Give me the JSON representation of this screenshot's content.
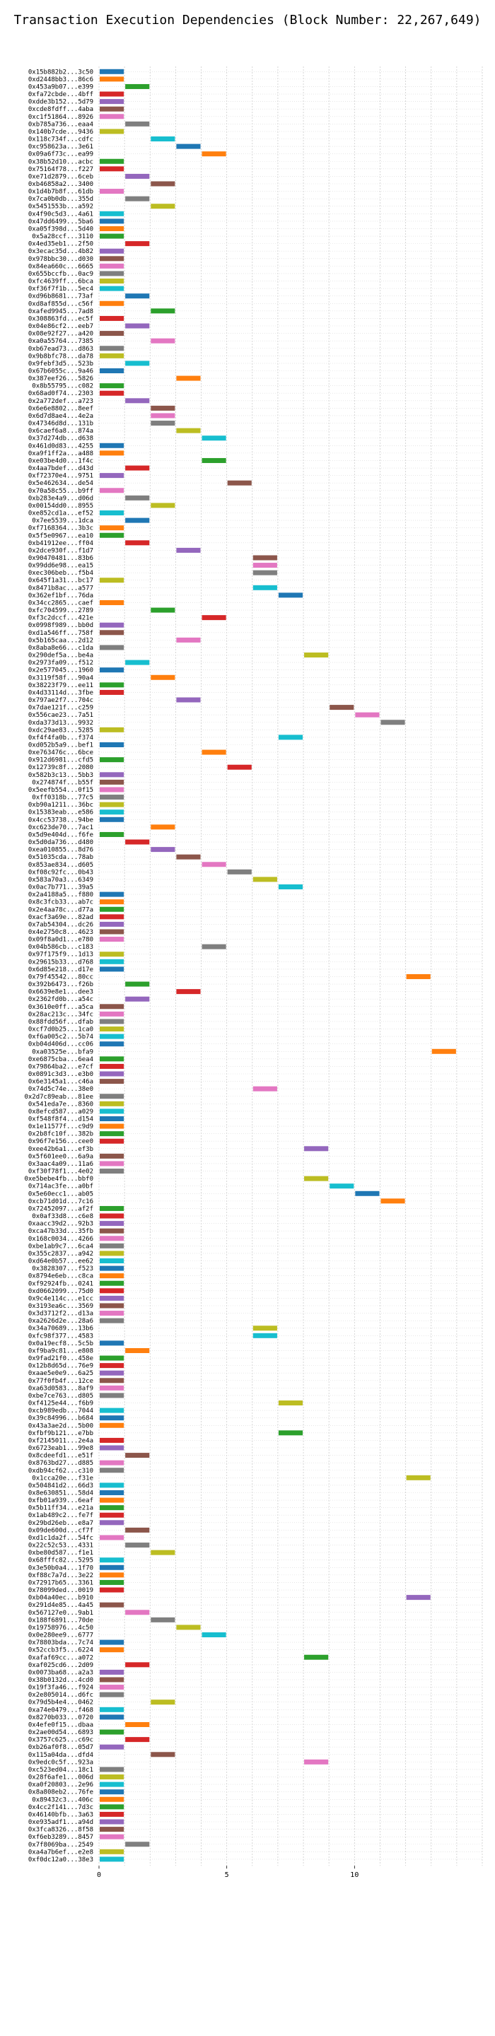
{
  "chart_data": {
    "type": "gantt",
    "title": "Transaction Execution Dependencies (Block Number: 22,267,649)",
    "xlabel": "",
    "ylabel": "",
    "xlim": [
      0,
      15
    ],
    "xticks": [
      0,
      5,
      10
    ],
    "grid": true,
    "palette": [
      "#1f77b4",
      "#ff7f0e",
      "#2ca02c",
      "#d62728",
      "#9467bd",
      "#8c564b",
      "#e377c2",
      "#7f7f7f",
      "#bcbd22",
      "#17becf"
    ],
    "transactions": [
      {
        "tx": "0x15b882b2...3c50",
        "start": 0
      },
      {
        "tx": "0xd2448bb3...86c6",
        "start": 0
      },
      {
        "tx": "0x453a9b07...e399",
        "start": 1
      },
      {
        "tx": "0xfa72cbde...4bff",
        "start": 0
      },
      {
        "tx": "0xdde3b152...5d79",
        "start": 0
      },
      {
        "tx": "0xcde8fdff...4aba",
        "start": 0
      },
      {
        "tx": "0xc1f51864...8926",
        "start": 0
      },
      {
        "tx": "0xb785a736...eaa4",
        "start": 1
      },
      {
        "tx": "0x140b7cde...9436",
        "start": 0
      },
      {
        "tx": "0x118c734f...cdfc",
        "start": 2
      },
      {
        "tx": "0xc958623a...3e61",
        "start": 3
      },
      {
        "tx": "0x09a6f73c...ea99",
        "start": 4
      },
      {
        "tx": "0x38b52d10...acbc",
        "start": 0
      },
      {
        "tx": "0x75164f78...f227",
        "start": 0
      },
      {
        "tx": "0xe71d2879...6ceb",
        "start": 1
      },
      {
        "tx": "0xb46858a2...3400",
        "start": 2
      },
      {
        "tx": "0x1d4b7b8f...61db",
        "start": 0
      },
      {
        "tx": "0x7ca0b0db...355d",
        "start": 1
      },
      {
        "tx": "0x5451553b...a592",
        "start": 2
      },
      {
        "tx": "0x4f90c5d3...4a61",
        "start": 0
      },
      {
        "tx": "0x47dd6499...5ba6",
        "start": 0
      },
      {
        "tx": "0xa05f398d...5d40",
        "start": 0
      },
      {
        "tx": "0x5a28ccf...3110",
        "start": 0
      },
      {
        "tx": "0x4ed35eb1...2f50",
        "start": 1
      },
      {
        "tx": "0x3ecac35d...4b82",
        "start": 0
      },
      {
        "tx": "0x978bbc30...d030",
        "start": 0
      },
      {
        "tx": "0x84ea660c...6665",
        "start": 0
      },
      {
        "tx": "0x655bccfb...0ac9",
        "start": 0
      },
      {
        "tx": "0xfc4639ff...6bca",
        "start": 0
      },
      {
        "tx": "0xf36f7f1b...5ec4",
        "start": 0
      },
      {
        "tx": "0xd96b8681...73af",
        "start": 1
      },
      {
        "tx": "0xd8af855d...c56f",
        "start": 0
      },
      {
        "tx": "0xafed9945...7ad8",
        "start": 2
      },
      {
        "tx": "0x308863fd...ec5f",
        "start": 0
      },
      {
        "tx": "0x04e86cf2...eeb7",
        "start": 1
      },
      {
        "tx": "0x08e92f27...a420",
        "start": 0
      },
      {
        "tx": "0xa0a55764...7385",
        "start": 2
      },
      {
        "tx": "0xb67ead73...d863",
        "start": 0
      },
      {
        "tx": "0x9b8bfc78...da78",
        "start": 0
      },
      {
        "tx": "0x9febf3d5...523b",
        "start": 1
      },
      {
        "tx": "0x67b6055c...9a46",
        "start": 0
      },
      {
        "tx": "0x387eef26...5826",
        "start": 3
      },
      {
        "tx": "0x8b55795...c082",
        "start": 0
      },
      {
        "tx": "0x68ad0f74...2303",
        "start": 0
      },
      {
        "tx": "0x2a772def...a723",
        "start": 1
      },
      {
        "tx": "0x6e6e8802...8eef",
        "start": 2
      },
      {
        "tx": "0x6d7d8ae4...4e2a",
        "start": 2
      },
      {
        "tx": "0x47346d8d...131b",
        "start": 2
      },
      {
        "tx": "0x6caef6a8...874a",
        "start": 3
      },
      {
        "tx": "0x37d274db...d638",
        "start": 4
      },
      {
        "tx": "0x461d0d83...4255",
        "start": 0
      },
      {
        "tx": "0xa9f1ff2a...a488",
        "start": 0
      },
      {
        "tx": "0xe03be4d0...1f4c",
        "start": 4
      },
      {
        "tx": "0x4aa7bdef...d43d",
        "start": 1
      },
      {
        "tx": "0xf72370e4...9751",
        "start": 0
      },
      {
        "tx": "0x5e462634...de54",
        "start": 5
      },
      {
        "tx": "0x70a58c55...b9ff",
        "start": 0
      },
      {
        "tx": "0xb283e4a9...d06d",
        "start": 1
      },
      {
        "tx": "0x00154dd0...8955",
        "start": 2
      },
      {
        "tx": "0xe852cd1a...ef52",
        "start": 0
      },
      {
        "tx": "0x7ee5539...1dca",
        "start": 1
      },
      {
        "tx": "0xf7168364...3b3c",
        "start": 0
      },
      {
        "tx": "0x5f5e0967...ea10",
        "start": 0
      },
      {
        "tx": "0xb41912ee...ff04",
        "start": 1
      },
      {
        "tx": "0x2dce930f...f1d7",
        "start": 3
      },
      {
        "tx": "0x90470481...83b6",
        "start": 6
      },
      {
        "tx": "0x99dd6e98...ea15",
        "start": 6
      },
      {
        "tx": "0xec306beb...f5b4",
        "start": 6
      },
      {
        "tx": "0x645f1a31...bc17",
        "start": 0
      },
      {
        "tx": "0x8471b8ac...a577",
        "start": 6
      },
      {
        "tx": "0x362ef1bf...76da",
        "start": 7
      },
      {
        "tx": "0x34cc2865...caef",
        "start": 0
      },
      {
        "tx": "0xfc704599...2789",
        "start": 2
      },
      {
        "tx": "0xf3c2dccf...421e",
        "start": 4
      },
      {
        "tx": "0x0998f989...bb0d",
        "start": 0
      },
      {
        "tx": "0xd1a546ff...758f",
        "start": 0
      },
      {
        "tx": "0x5b165caa...2d12",
        "start": 3
      },
      {
        "tx": "0x8aba8e66...c1da",
        "start": 0
      },
      {
        "tx": "0x290def5a...be4a",
        "start": 8
      },
      {
        "tx": "0x2973fa09...f512",
        "start": 1
      },
      {
        "tx": "0x2e577045...1960",
        "start": 0
      },
      {
        "tx": "0x3119f58f...90a4",
        "start": 2
      },
      {
        "tx": "0x38223f79...ee11",
        "start": 0
      },
      {
        "tx": "0x4d33114d...3fbe",
        "start": 0
      },
      {
        "tx": "0x797ae2f7...704c",
        "start": 3
      },
      {
        "tx": "0x7dae121f...c259",
        "start": 9
      },
      {
        "tx": "0x556cae23...7a51",
        "start": 10
      },
      {
        "tx": "0xda373d13...9932",
        "start": 11
      },
      {
        "tx": "0xdc29ae83...5285",
        "start": 0
      },
      {
        "tx": "0xf4f4fa0b...f374",
        "start": 7
      },
      {
        "tx": "0xd052b5a9...bef1",
        "start": 0
      },
      {
        "tx": "0xe763476c...6bce",
        "start": 4
      },
      {
        "tx": "0x912d6981...cfd5",
        "start": 0
      },
      {
        "tx": "0x12739c8f...2080",
        "start": 5
      },
      {
        "tx": "0x582b3c13...5bb3",
        "start": 0
      },
      {
        "tx": "0x274874f...b55f",
        "start": 0
      },
      {
        "tx": "0x5eefb554...0f15",
        "start": 0
      },
      {
        "tx": "0xff0318b...77c5",
        "start": 0
      },
      {
        "tx": "0xb90a1211...36bc",
        "start": 0
      },
      {
        "tx": "0x15383eab...e586",
        "start": 0
      },
      {
        "tx": "0x4cc53738...94be",
        "start": 0
      },
      {
        "tx": "0xc623de70...7ac1",
        "start": 2
      },
      {
        "tx": "0x5d9e404d...f6fe",
        "start": 0
      },
      {
        "tx": "0x5d0da736...d480",
        "start": 1
      },
      {
        "tx": "0xea010855...8d76",
        "start": 2
      },
      {
        "tx": "0x51035cda...78ab",
        "start": 3
      },
      {
        "tx": "0x853ae834...d605",
        "start": 4
      },
      {
        "tx": "0xf08c92fc...0b43",
        "start": 5
      },
      {
        "tx": "0x583a70a3...6349",
        "start": 6
      },
      {
        "tx": "0x0ac7b771...39a5",
        "start": 7
      },
      {
        "tx": "0x2a4188a5...f880",
        "start": 0
      },
      {
        "tx": "0x8c3fcb33...ab7c",
        "start": 0
      },
      {
        "tx": "0x2e4aa78c...d77a",
        "start": 0
      },
      {
        "tx": "0xacf3a69e...82ad",
        "start": 0
      },
      {
        "tx": "0x7ab54304...dc26",
        "start": 0
      },
      {
        "tx": "0x4e2750c8...4623",
        "start": 0
      },
      {
        "tx": "0x09f8a0d1...e780",
        "start": 0
      },
      {
        "tx": "0x04b586cb...c183",
        "start": 4
      },
      {
        "tx": "0x97f175f9...1d13",
        "start": 0
      },
      {
        "tx": "0x29615b33...d768",
        "start": 0
      },
      {
        "tx": "0x6d85e218...d17e",
        "start": 0
      },
      {
        "tx": "0x79f45542...80cc",
        "start": 12
      },
      {
        "tx": "0x392b6473...f26b",
        "start": 1
      },
      {
        "tx": "0x6639e8e1...dee3",
        "start": 3
      },
      {
        "tx": "0x2362fd0b...a54c",
        "start": 1
      },
      {
        "tx": "0x3610e0ff...a5ca",
        "start": 0
      },
      {
        "tx": "0x28ac213c...34fc",
        "start": 0
      },
      {
        "tx": "0x88fdd56f...dfab",
        "start": 0
      },
      {
        "tx": "0xcf7d0b25...1ca0",
        "start": 0
      },
      {
        "tx": "0xf6a005c2...5b74",
        "start": 0
      },
      {
        "tx": "0xb04d406d...cc06",
        "start": 0
      },
      {
        "tx": "0xa03525e...bfa9",
        "start": 13
      },
      {
        "tx": "0xe6875cba...6ea4",
        "start": 0
      },
      {
        "tx": "0x79864ba2...e7cf",
        "start": 0
      },
      {
        "tx": "0x0891c3d3...e3b0",
        "start": 0
      },
      {
        "tx": "0x6e3145a1...c46a",
        "start": 0
      },
      {
        "tx": "0x74d5c74e...38e0",
        "start": 6
      },
      {
        "tx": "0x2d7c89eab...81ee",
        "start": 0
      },
      {
        "tx": "0x541eda7e...8360",
        "start": 0
      },
      {
        "tx": "0x8efcd587...a029",
        "start": 0
      },
      {
        "tx": "0xf548f8f4...d154",
        "start": 0
      },
      {
        "tx": "0x1e11577f...c9d9",
        "start": 0
      },
      {
        "tx": "0x2b8fc10f...382b",
        "start": 0
      },
      {
        "tx": "0x96f7e156...cee0",
        "start": 0
      },
      {
        "tx": "0xee42b6a1...ef3b",
        "start": 8
      },
      {
        "tx": "0x5f601ee0...6a9a",
        "start": 0
      },
      {
        "tx": "0x3aac4a09...11a6",
        "start": 0
      },
      {
        "tx": "0xf30f78f1...4e02",
        "start": 0
      },
      {
        "tx": "0xe5bebe4fb...bbf0",
        "start": 8
      },
      {
        "tx": "0x714ac3fe...a0bf",
        "start": 9
      },
      {
        "tx": "0x5e60ecc1...ab05",
        "start": 10
      },
      {
        "tx": "0xcb71d01d...7c16",
        "start": 11
      },
      {
        "tx": "0x72452097...af2f",
        "start": 0
      },
      {
        "tx": "0x0af33d8...c6e8",
        "start": 0
      },
      {
        "tx": "0xaacc39d2...92b3",
        "start": 0
      },
      {
        "tx": "0xca47b33d...35fb",
        "start": 0
      },
      {
        "tx": "0x168c0034...4266",
        "start": 0
      },
      {
        "tx": "0xbe1ab9c7...6ca4",
        "start": 0
      },
      {
        "tx": "0x355c2837...a942",
        "start": 0
      },
      {
        "tx": "0xd64e0b57...ee62",
        "start": 0
      },
      {
        "tx": "0x3828307...f523",
        "start": 0
      },
      {
        "tx": "0x8794e6eb...c8ca",
        "start": 0
      },
      {
        "tx": "0xf92924fb...0241",
        "start": 0
      },
      {
        "tx": "0xd0662099...75d0",
        "start": 0
      },
      {
        "tx": "0x9c4e114c...e1cc",
        "start": 0
      },
      {
        "tx": "0x3193ea6c...3569",
        "start": 0
      },
      {
        "tx": "0x3d3712f2...d13a",
        "start": 0
      },
      {
        "tx": "0xa2626d2e...28a6",
        "start": 0
      },
      {
        "tx": "0x34a70689...13b6",
        "start": 6
      },
      {
        "tx": "0xfc98f377...4583",
        "start": 6
      },
      {
        "tx": "0x0a19ecf8...5c5b",
        "start": 0
      },
      {
        "tx": "0xf9ba9c81...e808",
        "start": 1
      },
      {
        "tx": "0x9fad21f0...458e",
        "start": 0
      },
      {
        "tx": "0x12b8d65d...76e9",
        "start": 0
      },
      {
        "tx": "0xaae5e0e9...6a25",
        "start": 0
      },
      {
        "tx": "0x77f0fb4f...12ce",
        "start": 0
      },
      {
        "tx": "0xa63d0583...8af9",
        "start": 0
      },
      {
        "tx": "0xbe7ce763...d805",
        "start": 0
      },
      {
        "tx": "0xf4125e44...f6b9",
        "start": 7
      },
      {
        "tx": "0xcb989edb...7044",
        "start": 0
      },
      {
        "tx": "0x39c84996...b684",
        "start": 0
      },
      {
        "tx": "0x43a3ae2d...5b00",
        "start": 0
      },
      {
        "tx": "0xfbf9b121...e7bb",
        "start": 7
      },
      {
        "tx": "0xf2145011...2e4a",
        "start": 0
      },
      {
        "tx": "0x6723eab1...99e8",
        "start": 0
      },
      {
        "tx": "0x8cdeefd1...e51f",
        "start": 1
      },
      {
        "tx": "0x8763bd27...d885",
        "start": 0
      },
      {
        "tx": "0xdb94cf62...c310",
        "start": 0
      },
      {
        "tx": "0x1cca20e...f31e",
        "start": 12
      },
      {
        "tx": "0x504841d2...66d3",
        "start": 0
      },
      {
        "tx": "0x8e630851...58d4",
        "start": 0
      },
      {
        "tx": "0xfb01a939...6eaf",
        "start": 0
      },
      {
        "tx": "0x5b11ff34...e21a",
        "start": 0
      },
      {
        "tx": "0x1ab489c2...fe7f",
        "start": 0
      },
      {
        "tx": "0x29bd26eb...e8a7",
        "start": 0
      },
      {
        "tx": "0x09de600d...cf7f",
        "start": 1
      },
      {
        "tx": "0xd1c1da2f...54fc",
        "start": 0
      },
      {
        "tx": "0x22c52c53...4331",
        "start": 1
      },
      {
        "tx": "0xbe80d587...f1e1",
        "start": 2
      },
      {
        "tx": "0x68fffc82...5295",
        "start": 0
      },
      {
        "tx": "0x3e50b0a4...1f70",
        "start": 0
      },
      {
        "tx": "0xf88c7a7d...3e22",
        "start": 0
      },
      {
        "tx": "0x72917b65...3361",
        "start": 0
      },
      {
        "tx": "0x78099ded...0019",
        "start": 0
      },
      {
        "tx": "0xb04a40ec...b910",
        "start": 12
      },
      {
        "tx": "0x291d4e85...4a45",
        "start": 0
      },
      {
        "tx": "0x567127e0...9ab1",
        "start": 1
      },
      {
        "tx": "0x188f6891...70de",
        "start": 2
      },
      {
        "tx": "0x19758976...4c50",
        "start": 3
      },
      {
        "tx": "0x0e280ee9...6777",
        "start": 4
      },
      {
        "tx": "0x78803bda...7c74",
        "start": 0
      },
      {
        "tx": "0x52ccb3f5...6224",
        "start": 0
      },
      {
        "tx": "0xafaf69cc...a072",
        "start": 8
      },
      {
        "tx": "0xaf025cd6...2d09",
        "start": 1
      },
      {
        "tx": "0x0073ba68...a2a3",
        "start": 0
      },
      {
        "tx": "0x38b0132d...4cd0",
        "start": 0
      },
      {
        "tx": "0x19f3fa46...f924",
        "start": 0
      },
      {
        "tx": "0x2e805014...d6fc",
        "start": 0
      },
      {
        "tx": "0x79d5b4e4...0462",
        "start": 2
      },
      {
        "tx": "0xa74e0479...f468",
        "start": 0
      },
      {
        "tx": "0x8270b033...0720",
        "start": 0
      },
      {
        "tx": "0x4efe0f15...dbaa",
        "start": 1
      },
      {
        "tx": "0x2ae00d54...6893",
        "start": 0
      },
      {
        "tx": "0x3757c625...c69c",
        "start": 1
      },
      {
        "tx": "0xb26af0f8...05d7",
        "start": 0
      },
      {
        "tx": "0x115a04da...dfd4",
        "start": 2
      },
      {
        "tx": "0x9edc0c5f...923a",
        "start": 8
      },
      {
        "tx": "0xc523ed04...18c1",
        "start": 0
      },
      {
        "tx": "0x28f6afe1...006d",
        "start": 0
      },
      {
        "tx": "0xa0f20803...2e96",
        "start": 0
      },
      {
        "tx": "0x8a808eb2...76fe",
        "start": 0
      },
      {
        "tx": "0x89432c3...406c",
        "start": 0
      },
      {
        "tx": "0x4cc2f141...7d3c",
        "start": 0
      },
      {
        "tx": "0x46140bfb...3a63",
        "start": 0
      },
      {
        "tx": "0xe935adf1...a94d",
        "start": 0
      },
      {
        "tx": "0x3fca8326...8f58",
        "start": 0
      },
      {
        "tx": "0xf6eb3289...8457",
        "start": 0
      },
      {
        "tx": "0x7f8069ba...2549",
        "start": 1
      },
      {
        "tx": "0xa4a7b6ef...e2e8",
        "start": 0
      },
      {
        "tx": "0xf0dc12a0...38e3",
        "start": 0
      }
    ]
  }
}
